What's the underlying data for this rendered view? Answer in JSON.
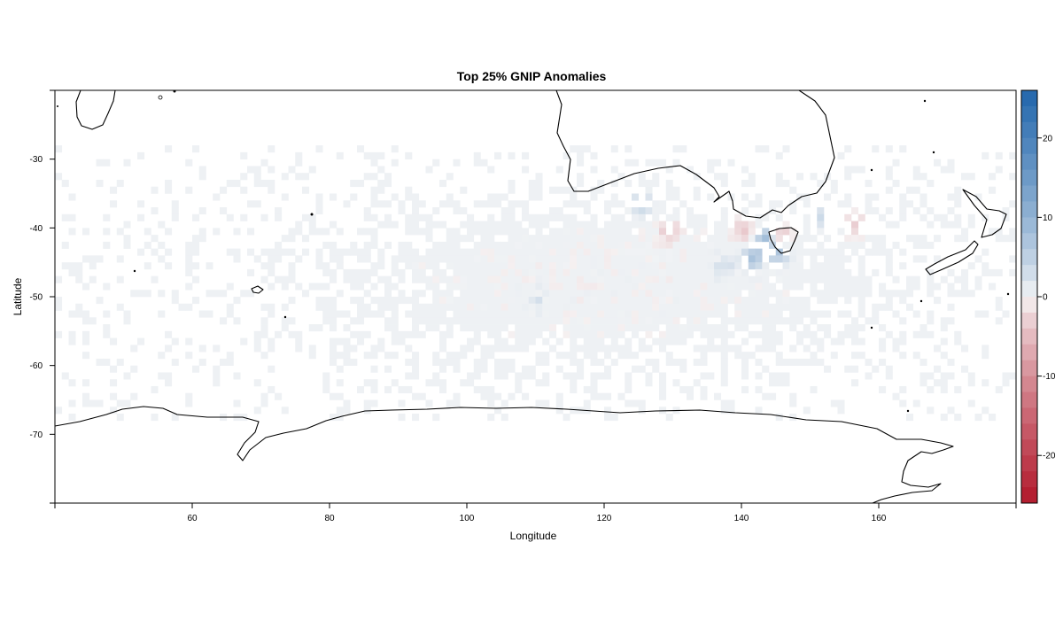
{
  "chart_data": {
    "type": "heatmap",
    "title": "Top 25% GNIP Anomalies",
    "xlabel": "Longitude",
    "ylabel": "Latitude",
    "xlim": [
      40,
      180
    ],
    "ylim": [
      -80,
      -20
    ],
    "x_ticks": [
      60,
      80,
      100,
      120,
      140,
      160
    ],
    "y_ticks": [
      -30,
      -40,
      -50,
      -60,
      -70
    ],
    "x_tick_labels": [
      "60",
      "80",
      "100",
      "120",
      "140",
      "160"
    ],
    "y_tick_labels": [
      "-30",
      "-40",
      "-50",
      "-60",
      "-70"
    ],
    "colorbar": {
      "range": [
        -26,
        26
      ],
      "ticks": [
        20,
        10,
        0,
        -10,
        -20
      ],
      "tick_labels": [
        "20",
        "10",
        "0",
        "-10",
        "-20"
      ],
      "low_color": "#b2182b",
      "mid_color": "#f7f7f7",
      "high_color": "#2166ac"
    },
    "background_cell_color": "#eef1f4",
    "data_extent": {
      "lon": [
        40,
        180
      ],
      "lat": [
        -68,
        -28
      ]
    },
    "hotspots": [
      {
        "lon": 143.5,
        "lat": -41.5,
        "value": 12
      },
      {
        "lon": 145.5,
        "lat": -43.5,
        "value": 10
      },
      {
        "lon": 141.5,
        "lat": -44.5,
        "value": 9
      },
      {
        "lon": 125.5,
        "lat": -36.5,
        "value": 6
      },
      {
        "lon": 145.5,
        "lat": -41.5,
        "value": -9
      },
      {
        "lon": 140.5,
        "lat": -40.5,
        "value": -6
      },
      {
        "lon": 129.5,
        "lat": -40.5,
        "value": -5
      },
      {
        "lon": 152.5,
        "lat": -38.5,
        "value": 7
      },
      {
        "lon": 156.5,
        "lat": -39.5,
        "value": -5
      },
      {
        "lon": 137.5,
        "lat": -45.5,
        "value": 4
      },
      {
        "lon": 110.5,
        "lat": -50.5,
        "value": 3
      }
    ]
  }
}
